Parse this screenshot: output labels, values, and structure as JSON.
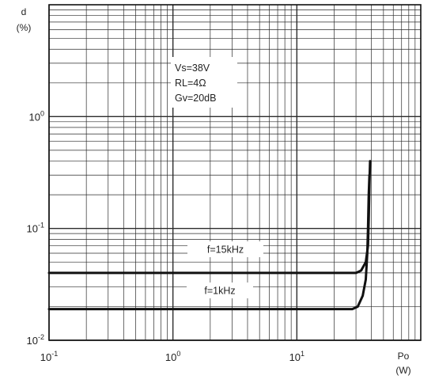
{
  "chart_data": {
    "type": "line",
    "title": "",
    "x_axis": {
      "label": "Po",
      "unit": "(W)",
      "scale": "log",
      "range": [
        0.1,
        100
      ],
      "ticks": [
        {
          "value": 0.1,
          "base": "10",
          "exp": "-1"
        },
        {
          "value": 1,
          "base": "10",
          "exp": "0"
        },
        {
          "value": 10,
          "base": "10",
          "exp": "1"
        }
      ]
    },
    "y_axis": {
      "label": "d",
      "unit": "(%)",
      "scale": "log",
      "range": [
        0.01,
        10
      ],
      "ticks": [
        {
          "value": 0.01,
          "base": "10",
          "exp": "-2"
        },
        {
          "value": 0.1,
          "base": "10",
          "exp": "-1"
        },
        {
          "value": 1,
          "base": "10",
          "exp": "0"
        }
      ]
    },
    "grid": true,
    "conditions": [
      "Vs=38V",
      "RL=4Ω",
      "Gv=20dB"
    ],
    "series": [
      {
        "name": "f=15kHz",
        "color": "#111111",
        "points": [
          [
            0.1,
            0.04
          ],
          [
            10,
            0.04
          ],
          [
            30,
            0.04
          ],
          [
            33,
            0.042
          ],
          [
            36,
            0.05
          ],
          [
            37.5,
            0.07
          ],
          [
            38,
            0.12
          ],
          [
            38.5,
            0.25
          ],
          [
            39,
            0.4
          ]
        ]
      },
      {
        "name": "f=1kHz",
        "color": "#111111",
        "points": [
          [
            0.1,
            0.019
          ],
          [
            10,
            0.019
          ],
          [
            28,
            0.019
          ],
          [
            31,
            0.02
          ],
          [
            34,
            0.025
          ],
          [
            36,
            0.035
          ],
          [
            37,
            0.06
          ],
          [
            37.5,
            0.1
          ],
          [
            38,
            0.2
          ],
          [
            38.5,
            0.3
          ]
        ]
      }
    ]
  }
}
